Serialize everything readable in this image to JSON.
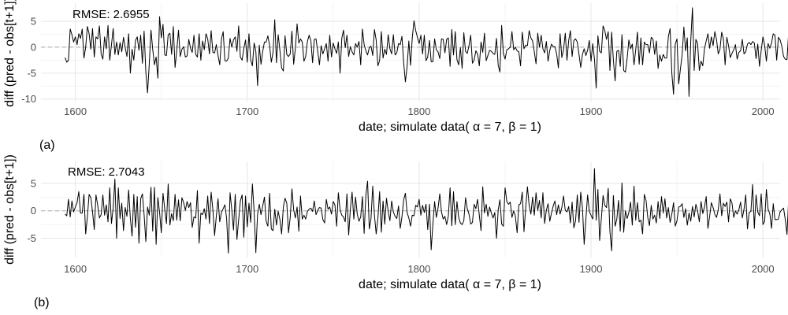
{
  "chart_data": [
    {
      "type": "line",
      "panel_label": "(a)",
      "annotation": "RMSE: 2.6955",
      "xlabel": "date; simulate data( α = 7,  β = 1)",
      "ylabel": "diff (pred - obs[t+1])",
      "xlim": [
        1580,
        2010
      ],
      "ylim": [
        -10.5,
        8.5
      ],
      "xticks": [
        1600,
        1700,
        1800,
        1900,
        2000
      ],
      "yticks": [
        -10,
        -5,
        0,
        5
      ],
      "ytick_labels": [
        "-10",
        "-5",
        "0",
        "5"
      ],
      "reference_line": 0,
      "grid": true,
      "x_start": 1594,
      "x_step": 1,
      "y": [
        -2.0,
        -2.9,
        -2.5,
        3.5,
        2.4,
        1.0,
        2.0,
        0.5,
        2.6,
        1.7,
        3.5,
        -2.1,
        0.0,
        4.0,
        2.6,
        -0.4,
        3.6,
        -1.9,
        2.0,
        1.6,
        4.1,
        -1.3,
        -2.3,
        2.0,
        -0.3,
        4.2,
        -2.5,
        0.4,
        3.6,
        -1.4,
        1.0,
        -1.5,
        0.9,
        -0.9,
        1.9,
        -0.1,
        -1.8,
        2.6,
        -5.0,
        -0.4,
        -2.5,
        1.3,
        2.0,
        -0.6,
        2.3,
        -3.1,
        3.1,
        -4.8,
        -8.8,
        -3.2,
        3.3,
        -0.4,
        -3.4,
        -1.9,
        -6.0,
        5.9,
        1.8,
        4.4,
        -1.5,
        -1.6,
        2.4,
        2.7,
        -1.4,
        4.0,
        -3.9,
        -0.7,
        3.3,
        -1.8,
        -0.4,
        0.1,
        -1.9,
        -1.7,
        1.5,
        -0.2,
        -1.0,
        2.3,
        -1.4,
        -1.9,
        2.6,
        -2.5,
        1.2,
        -0.5,
        2.6,
        1.6,
        -1.3,
        3.2,
        -1.0,
        -1.1,
        0.5,
        -1.6,
        -3.4,
        1.6,
        3.0,
        -2.6,
        -2.7,
        -2.1,
        1.7,
        0.0,
        1.4,
        2.0,
        -0.8,
        4.1,
        -1.9,
        -2.5,
        -0.3,
        1.4,
        -2.9,
        2.6,
        -2.5,
        -3.6,
        0.8,
        -0.8,
        -7.4,
        0.4,
        -3.3,
        -0.8,
        1.0,
        1.0,
        2.2,
        0.3,
        -2.9,
        -1.0,
        5.3,
        -3.0,
        2.4,
        -0.6,
        -4.0,
        -4.6,
        2.2,
        -1.4,
        -1.8,
        -1.3,
        3.1,
        -3.3,
        -0.2,
        4.5,
        0.8,
        1.6,
        1.0,
        -2.7,
        -1.8,
        1.1,
        2.3,
        1.3,
        -3.0,
        1.5,
        1.6,
        -0.8,
        -3.4,
        0.3,
        -1.3,
        -0.3,
        0.7,
        -2.7,
        2.3,
        -1.9,
        0.8,
        -0.3,
        -1.2,
        1.0,
        -5.0,
        1.7,
        3.3,
        -0.1,
        2.3,
        -1.8,
        0.1,
        -0.9,
        -1.5,
        0.7,
        0.0,
        1.1,
        -3.4,
        3.5,
        0.5,
        -0.7,
        -1.5,
        -0.1,
        0.2,
        -1.6,
        3.4,
        1.4,
        -3.6,
        -2.6,
        3.0,
        -2.1,
        -0.4,
        -1.4,
        2.4,
        -0.3,
        -1.3,
        2.4,
        -1.5,
        -1.1,
        0.7,
        0.5,
        2.1,
        -3.0,
        -6.7,
        -3.7,
        1.2,
        -3.5,
        1.8,
        5.1,
        3.2,
        1.9,
        0.7,
        2.3,
        -1.3,
        2.3,
        -2.6,
        -1.9,
        1.3,
        -2.8,
        -2.8,
        1.6,
        -0.5,
        -0.9,
        -2.2,
        1.6,
        1.5,
        -1.1,
        1.5,
        1.8,
        -3.7,
        3.4,
        -1.5,
        3.0,
        -2.4,
        -3.4,
        -0.1,
        -4.1,
        2.8,
        -0.8,
        -1.2,
        0.3,
        2.3,
        -3.1,
        -2.5,
        -0.7,
        -1.3,
        -3.6,
        1.0,
        -1.0,
        2.7,
        -2.6,
        -1.6,
        -0.6,
        -0.8,
        -1.2,
        -1.4,
        1.7,
        -3.5,
        -4.8,
        4.2,
        -1.2,
        -2.3,
        -0.5,
        -0.3,
        0.0,
        3.0,
        -0.5,
        0.0,
        -0.7,
        -0.9,
        -3.6,
        2.9,
        -0.3,
        0.4,
        0.3,
        3.2,
        1.8,
        1.2,
        -0.9,
        -3.2,
        2.7,
        0.0,
        2.3,
        -0.3,
        -1.1,
        1.1,
        -2.7,
        -0.6,
        0.6,
        0.1,
        0.1,
        -1.3,
        -4.0,
        2.6,
        -2.0,
        -0.5,
        2.7,
        -2.5,
        1.3,
        3.2,
        -1.8,
        1.3,
        1.6,
        1.0,
        -1.4,
        -3.9,
        -1.4,
        -0.3,
        -1.6,
        -0.6,
        1.3,
        -2.7,
        0.7,
        -2.3,
        -7.9,
        2.2,
        -0.8,
        -1.1,
        4.1,
        3.2,
        1.5,
        3.0,
        -4.5,
        2.9,
        -2.5,
        -6.5,
        -0.8,
        -0.6,
        -3.7,
        2.4,
        -4.5,
        -4.8,
        -2.2,
        1.4,
        -0.3,
        0.6,
        -3.4,
        -0.5,
        2.9,
        -3.3,
        1.8,
        -3.4,
        1.0,
        0.5,
        0.5,
        -1.1,
        1.9,
        1.6,
        -1.4,
        1.2,
        -4.1,
        -1.5,
        -2.7,
        -1.4,
        -2.1,
        -2.1,
        2.1,
        3.6,
        -5.0,
        -9.1,
        0.6,
        1.6,
        -7.1,
        -4.2,
        -1.5,
        3.9,
        -0.7,
        1.8,
        -9.5,
        1.1,
        7.6,
        -4.5,
        1.5,
        0.7,
        -4.5,
        -2.7,
        -3.6,
        -0.3,
        1.2,
        2.6,
        -0.2,
        2.0,
        0.3,
        3.0,
        1.5,
        -1.3,
        -0.4,
        2.9,
        1.6,
        -3.4,
        1.9,
        0.3,
        -2.0,
        -1.2,
        -0.5,
        0.5,
        -2.3,
        -1.0,
        -0.7,
        1.5,
        -1.3,
        -0.9,
        0.6,
        0.9,
        0.5,
        1.1,
        0.8,
        -2.2,
        0.6,
        -3.7,
        -0.6,
        2.0,
        0.4,
        -2.7,
        0.7,
        -0.2,
        0.8,
        2.6,
        2.3,
        -2.5,
        1.9,
        1.4,
        0.2,
        -1.8,
        -2.3,
        -2.4,
        3.1,
        1.2,
        -0.1,
        1.6,
        -0.5,
        -2.2,
        2.9,
        4.0,
        2.1,
        -0.7,
        0.3,
        -2.3,
        0.7,
        -3.5,
        1.7,
        2.9,
        0.1,
        -1.6,
        2.5,
        0.3,
        -2.6,
        -2.6,
        -1.8,
        0.1,
        -3.4,
        -6.5,
        -1.5,
        1.4,
        -2.6,
        -3.2,
        -6.1,
        -10.2,
        1.4,
        3.5,
        -1.1,
        2.6,
        0.3,
        0.4,
        -2.1,
        -0.3,
        -2.3,
        2.7,
        -3.2,
        -0.1,
        -0.7,
        2.2,
        -1.2,
        -2.7,
        -3.1,
        1.0,
        -4.8,
        2.6,
        0.8,
        -0.3,
        -1.8,
        -0.8,
        -0.4,
        -2.3,
        -0.7,
        3.4,
        1.2,
        1.1,
        -1.4,
        3.1,
        2.5,
        -2.2,
        -1.5
      ]
    },
    {
      "type": "line",
      "panel_label": "(b)",
      "annotation": "RMSE: 2.7043",
      "xlabel": "date; simulate data( α = 7,  β = 1)",
      "ylabel": "diff (pred - obs[t+1])",
      "xlim": [
        1580,
        2010
      ],
      "ylim": [
        -8.5,
        9.0
      ],
      "xticks": [
        1600,
        1700,
        1800,
        1900,
        2000
      ],
      "yticks": [
        -5,
        0,
        5
      ],
      "ytick_labels": [
        "-5",
        "0",
        "5"
      ],
      "reference_line": 0,
      "grid": true,
      "x_start": 1594,
      "x_step": 1,
      "y": [
        -0.6,
        -0.9,
        2.1,
        -1.1,
        1.8,
        -0.2,
        0.7,
        1.5,
        3.5,
        -0.4,
        -0.4,
        3.0,
        -4.2,
        -1.1,
        3.0,
        2.4,
        -0.2,
        -3.4,
        2.9,
        1.0,
        -1.3,
        -0.7,
        2.9,
        -0.8,
        1.1,
        -2.0,
        4.2,
        -2.3,
        0.5,
        5.8,
        -5.0,
        4.2,
        -1.4,
        1.4,
        -3.6,
        0.6,
        -1.0,
        3.8,
        -1.4,
        -4.6,
        3.0,
        -3.0,
        2.6,
        -5.9,
        2.2,
        3.1,
        -0.7,
        -5.6,
        0.7,
        -0.8,
        4.3,
        -3.7,
        4.3,
        -6.1,
        2.4,
        -0.3,
        -4.0,
        3.2,
        0.3,
        -2.3,
        4.9,
        -2.6,
        -0.5,
        -1.8,
        3.0,
        -1.7,
        2.0,
        -1.8,
        2.4,
        1.5,
        0.1,
        1.7,
        0.6,
        1.5,
        -3.0,
        -1.1,
        -1.3,
        3.7,
        -5.9,
        -0.4,
        -0.7,
        0.4,
        -1.5,
        2.7,
        -2.3,
        3.4,
        0.2,
        -4.5,
        -1.0,
        2.2,
        -2.0,
        -0.3,
        0.4,
        1.1,
        -1.4,
        -7.7,
        3.3,
        0.2,
        -3.5,
        3.0,
        -5.2,
        -1.6,
        1.8,
        2.9,
        -4.8,
        2.7,
        -2.9,
        1.4,
        -2.1,
        4.9,
        -0.1,
        -7.6,
        -0.6,
        1.2,
        -0.7,
        0.9,
        2.5,
        -1.9,
        -2.8,
        3.2,
        -3.3,
        -3.6,
        0.3,
        -2.6,
        -0.1,
        -1.6,
        -4.2,
        0.7,
        2.3,
        1.4,
        -4.0,
        -1.2,
        4.0,
        0.2,
        -1.3,
        0.7,
        -3.7,
        2.7,
        -1.5,
        -0.8,
        -1.5,
        -0.1,
        0.3,
        0.5,
        -0.1,
        1.8,
        -0.7,
        0.1,
        0.6,
        0.5,
        -1.6,
        -2.2,
        2.1,
        0.3,
        0.7,
        -0.6,
        1.7,
        1.1,
        -2.8,
        3.3,
        0.2,
        -0.8,
        -1.1,
        -2.0,
        3.1,
        -4.4,
        0.4,
        3.4,
        -1.5,
        2.5,
        -0.6,
        -1.9,
        -1.1,
        2.6,
        -4.1,
        2.8,
        5.4,
        -3.3,
        -1.4,
        4.5,
        -0.8,
        -4.2,
        -1.4,
        3.5,
        -3.9,
        1.8,
        -2.4,
        2.3,
        -0.1,
        -1.8,
        1.8,
        -0.2,
        -1.0,
        -1.4,
        0.9,
        -3.2,
        -1.1,
        2.0,
        3.2,
        -0.3,
        -1.3,
        -2.8,
        -0.8,
        -0.9,
        1.0,
        0.7,
        2.1,
        -0.8,
        1.0,
        -0.3,
        1.2,
        -3.4,
        1.2,
        -7.1,
        -2.4,
        1.7,
        -1.2,
        0.5,
        3.1,
        -0.2,
        -1.5,
        -1.0,
        -2.5,
        -0.9,
        4.2,
        -2.7,
        3.5,
        -2.5,
        1.7,
        -1.2,
        -2.2,
        -2.5,
        -1.8,
        2.4,
        0.4,
        -0.6,
        -2.4,
        -2.1,
        1.2,
        0.4,
        2.1,
        -0.8,
        -3.6,
        4.4,
        -0.4,
        1.2,
        -1.0,
        0.7,
        -0.4,
        -1.3,
        -0.3,
        -5.0,
        0.2,
        2.0,
        -2.4,
        -2.8,
        4.2,
        1.7,
        1.2,
        1.6,
        -1.2,
        0.0,
        -1.0,
        -4.0,
        1.1,
        1.3,
        3.4,
        -3.8,
        0.6,
        4.4,
        1.0,
        -0.6,
        2.5,
        -0.8,
        3.3,
        0.1,
        1.9,
        -1.3,
        3.3,
        -2.3,
        0.1,
        1.3,
        -1.9,
        -0.4,
        0.9,
        1.8,
        -0.7,
        1.1,
        -0.6,
        0.6,
        2.7,
        0.1,
        -0.2,
        0.8,
        -2.2,
        1.6,
        -3.1,
        -1.8,
        2.9,
        -2.1,
        3.4,
        0.6,
        -6.1,
        -1.5,
        2.9,
        -0.1,
        -0.8,
        -1.5,
        7.7,
        -1.7,
        3.9,
        -5.4,
        -1.4,
        2.8,
        1.0,
        0.6,
        4.1,
        -3.8,
        -7.3,
        2.8,
        -2.8,
        -1.5,
        1.9,
        -3.7,
        5.1,
        -3.9,
        0.0,
        -1.4,
        -0.3,
        1.6,
        -2.6,
        4.5,
        -1.7,
        1.5,
        -2.0,
        -1.7,
        -4.2,
        3.0,
        1.9,
        -1.2,
        -2.7,
        1.0,
        -1.5,
        -0.8,
        -2.2,
        1.7,
        -1.4,
        2.6,
        -0.4,
        2.2,
        -1.3,
        0.6,
        -2.1,
        -0.6,
        1.5,
        -2.8,
        -1.8,
        0.7,
        0.8,
        1.3,
        -1.2,
        0.4,
        -2.6,
        -0.4,
        -1.9,
        0.8,
        -1.1,
        1.2,
        0.0,
        -2.0,
        1.7,
        -0.5,
        0.7,
        2.6,
        -3.2,
        -1.0,
        1.5,
        0.6,
        -0.6,
        -1.2,
        0.2,
        3.1,
        -0.9,
        1.4,
        0.8,
        1.6,
        -2.0,
        2.2,
        1.4,
        -1.2,
        0.0,
        -0.6,
        0.2,
        1.6,
        -1.3,
        0.3,
        2.9,
        -3.3,
        -0.3,
        -0.1,
        4.8,
        -3.2,
        2.9,
        -0.2,
        -0.9,
        3.1,
        -2.5,
        -1.9,
        3.9,
        0.3,
        -0.5,
        -3.2,
        1.3,
        -1.6,
        -1.6,
        -1.5,
        -0.2,
        0.2,
        0.5,
        -1.6,
        -4.3,
        2.4,
        0.2,
        -3.2,
        -1.8,
        1.6,
        0.8,
        -2.1,
        0.3,
        1.0,
        -1.2,
        -0.1,
        0.9,
        2.0,
        0.4,
        1.3,
        -2.0,
        1.4,
        2.4,
        -0.8,
        1.0,
        -0.2,
        -1.2,
        1.6,
        -7.0,
        1.7,
        -2.4,
        3.3,
        0.4,
        1.4,
        -1.8,
        1.9,
        -1.4,
        -0.4,
        3.0,
        -0.1,
        -0.1,
        0.8,
        1.1,
        -0.9,
        1.4,
        -1.9,
        -2.0,
        2.6,
        -0.6,
        -3.5,
        1.4,
        -1.9,
        -1.3,
        -2.7,
        0.6,
        -2.3
      ]
    }
  ]
}
